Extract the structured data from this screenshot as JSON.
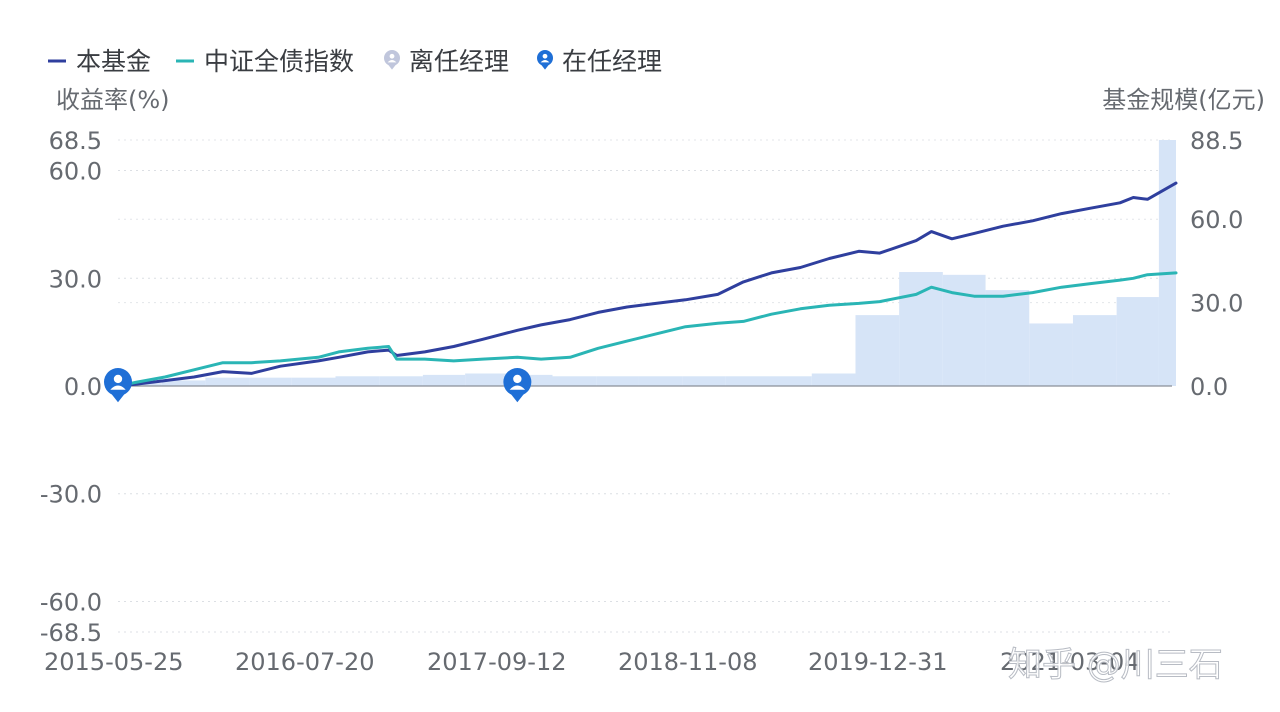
{
  "chart_data": {
    "type": "line",
    "legend": {
      "position": "top-left",
      "items": [
        {
          "label": "本基金",
          "color": "#2f3f9e",
          "marker": "line"
        },
        {
          "label": "中证全债指数",
          "color": "#2ab5b5",
          "marker": "line"
        },
        {
          "label": "离任经理",
          "color": "#c0c6dc",
          "marker": "manager-pin"
        },
        {
          "label": "在任经理",
          "color": "#1f6fd6",
          "marker": "manager-pin"
        }
      ]
    },
    "ylabel_left": "收益率(%)",
    "ylabel_right": "基金规模(亿元)",
    "y_left": {
      "range": [
        -68.5,
        68.5
      ],
      "ticks": [
        68.5,
        60.0,
        30.0,
        0.0,
        -30.0,
        -60.0,
        -68.5
      ],
      "tick_labels": [
        "68.5",
        "60.0",
        "30.0",
        "0.0",
        "-30.0",
        "-60.0",
        "-68.5"
      ]
    },
    "y_right": {
      "range": [
        0,
        88.5
      ],
      "ticks": [
        88.5,
        60.0,
        30.0,
        0.0
      ],
      "tick_labels": [
        "88.5",
        "60.0",
        "30.0",
        "0.0"
      ]
    },
    "x_axis": {
      "start": "2015-05-25",
      "end": "2021-06-30",
      "tick_labels": [
        "2015-05-25",
        "2016-07-20",
        "2017-09-12",
        "2018-11-08",
        "2019-12-31",
        "2021-03-04"
      ]
    },
    "grid": true,
    "series": [
      {
        "name": "本基金",
        "axis": "left",
        "type": "line",
        "color": "#2f3f9e",
        "x": [
          "2015-05-25",
          "2015-07-01",
          "2015-09-01",
          "2015-11-01",
          "2016-01-01",
          "2016-03-01",
          "2016-05-01",
          "2016-07-20",
          "2016-09-01",
          "2016-11-01",
          "2016-12-15",
          "2017-01-01",
          "2017-03-01",
          "2017-05-01",
          "2017-07-01",
          "2017-09-12",
          "2017-11-01",
          "2018-01-01",
          "2018-03-01",
          "2018-05-01",
          "2018-07-01",
          "2018-09-01",
          "2018-11-08",
          "2019-01-01",
          "2019-03-01",
          "2019-05-01",
          "2019-07-01",
          "2019-09-01",
          "2019-10-15",
          "2019-12-31",
          "2020-02-01",
          "2020-03-15",
          "2020-05-01",
          "2020-07-01",
          "2020-09-01",
          "2020-11-01",
          "2021-01-01",
          "2021-03-04",
          "2021-04-01",
          "2021-05-01",
          "2021-06-30"
        ],
        "y": [
          0.0,
          0.5,
          1.5,
          2.5,
          4.0,
          3.5,
          5.5,
          7.0,
          8.0,
          9.5,
          10.0,
          8.5,
          9.5,
          11.0,
          13.0,
          15.5,
          17.0,
          18.5,
          20.5,
          22.0,
          23.0,
          24.0,
          25.5,
          29.0,
          31.5,
          33.0,
          35.5,
          37.5,
          37.0,
          40.5,
          43.0,
          41.0,
          42.5,
          44.5,
          46.0,
          48.0,
          49.5,
          51.0,
          52.5,
          52.0,
          56.5
        ]
      },
      {
        "name": "中证全债指数",
        "axis": "left",
        "type": "line",
        "color": "#2ab5b5",
        "x": [
          "2015-05-25",
          "2015-07-01",
          "2015-09-01",
          "2015-11-01",
          "2016-01-01",
          "2016-03-01",
          "2016-05-01",
          "2016-07-20",
          "2016-09-01",
          "2016-11-01",
          "2016-12-15",
          "2017-01-01",
          "2017-03-01",
          "2017-05-01",
          "2017-07-01",
          "2017-09-12",
          "2017-11-01",
          "2018-01-01",
          "2018-03-01",
          "2018-05-01",
          "2018-07-01",
          "2018-09-01",
          "2018-11-08",
          "2019-01-01",
          "2019-03-01",
          "2019-05-01",
          "2019-07-01",
          "2019-09-01",
          "2019-10-15",
          "2019-12-31",
          "2020-02-01",
          "2020-03-15",
          "2020-05-01",
          "2020-07-01",
          "2020-09-01",
          "2020-11-01",
          "2021-01-01",
          "2021-03-04",
          "2021-04-01",
          "2021-05-01",
          "2021-06-30"
        ],
        "y": [
          0.0,
          1.0,
          2.5,
          4.5,
          6.5,
          6.5,
          7.0,
          8.0,
          9.5,
          10.5,
          11.0,
          7.5,
          7.5,
          7.0,
          7.5,
          8.0,
          7.5,
          8.0,
          10.5,
          12.5,
          14.5,
          16.5,
          17.5,
          18.0,
          20.0,
          21.5,
          22.5,
          23.0,
          23.5,
          25.5,
          27.5,
          26.0,
          25.0,
          25.0,
          26.0,
          27.5,
          28.5,
          29.5,
          30.0,
          31.0,
          31.5
        ]
      },
      {
        "name": "基金规模",
        "axis": "right",
        "type": "step-area",
        "color": "#d6e4f7",
        "x": [
          "2015-05-25",
          "2015-08-25",
          "2015-11-25",
          "2016-02-25",
          "2016-05-25",
          "2016-08-25",
          "2016-11-25",
          "2017-02-25",
          "2017-05-25",
          "2017-08-25",
          "2017-11-25",
          "2018-02-25",
          "2018-05-25",
          "2018-08-25",
          "2018-11-25",
          "2019-02-25",
          "2019-05-25",
          "2019-08-25",
          "2019-11-25",
          "2020-02-25",
          "2020-05-25",
          "2020-08-25",
          "2020-11-25",
          "2021-02-25",
          "2021-05-25"
        ],
        "y": [
          1.0,
          2.0,
          3.0,
          3.0,
          3.0,
          3.5,
          3.5,
          4.0,
          4.5,
          4.0,
          3.5,
          3.5,
          3.5,
          3.5,
          3.5,
          3.5,
          4.5,
          25.5,
          41.0,
          40.0,
          34.5,
          22.5,
          25.5,
          32.0,
          88.5
        ]
      }
    ],
    "managers": [
      {
        "date": "2015-05-25",
        "status": "离任经理"
      },
      {
        "date": "2017-09-12",
        "status": "在任经理"
      }
    ]
  },
  "watermark": "知乎 @川三石"
}
